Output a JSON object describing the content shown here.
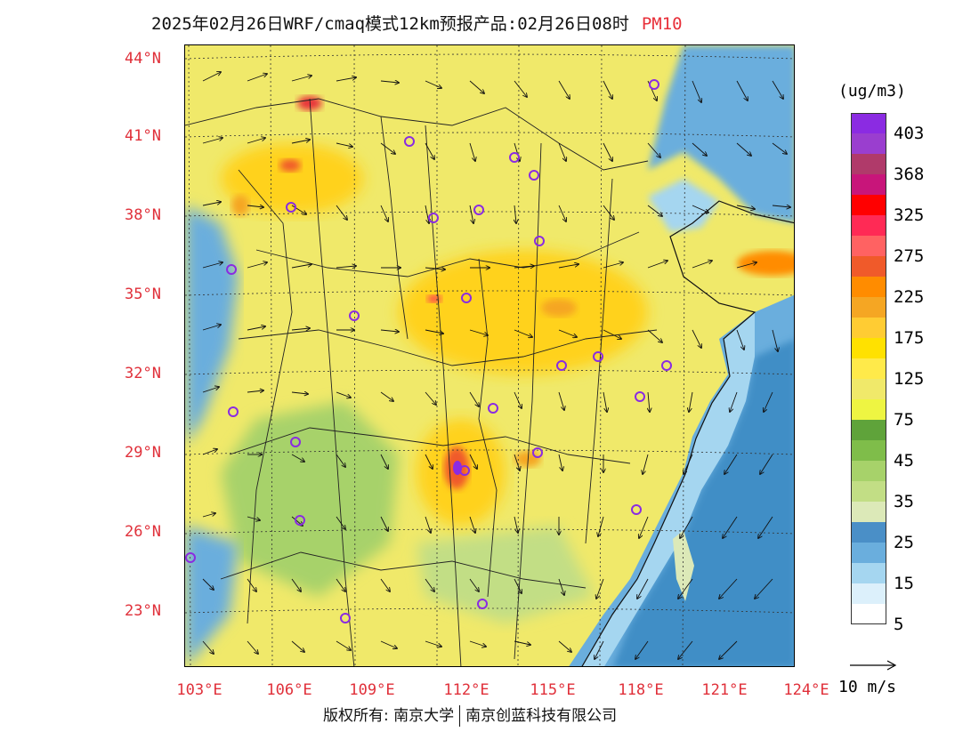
{
  "title": {
    "main": "2025年02月26日WRF/cmaq模式12km预报产品:02月26日08时",
    "species": "PM10"
  },
  "map": {
    "lat_labels": [
      "44°N",
      "41°N",
      "38°N",
      "35°N",
      "32°N",
      "29°N",
      "26°N",
      "23°N"
    ],
    "lon_labels": [
      "103°E",
      "106°E",
      "109°E",
      "112°E",
      "115°E",
      "118°E",
      "121°E",
      "124°E"
    ],
    "colors": {
      "land_base": "#f0e96a",
      "high": "#ffd21e",
      "sea_deep": "#3f8ec6",
      "sea": "#6aaedd",
      "sea_light": "#a5d6f0",
      "label": "#e0303a"
    }
  },
  "colorbar": {
    "unit": "(ug/m3)",
    "colors": [
      "#8b2be2",
      "#9a3ecf",
      "#b03a6a",
      "#c8157a",
      "#ff0000",
      "#ff2a55",
      "#ff6262",
      "#f05a2a",
      "#ff8c00",
      "#f5a623",
      "#ffcc33",
      "#ffe100",
      "#ffea4a",
      "#f0e96a",
      "#eef542",
      "#5fa33a",
      "#7fbd4a",
      "#a7d26a",
      "#c2de85",
      "#dce9b8",
      "#4a8fc7",
      "#6aaedd",
      "#a5d6f0",
      "#dcf0fb",
      "#ffffff"
    ],
    "labels": [
      "403",
      "368",
      "325",
      "275",
      "225",
      "175",
      "125",
      "75",
      "45",
      "35",
      "25",
      "15",
      "5"
    ]
  },
  "wind_reference": {
    "label": "10 m/s"
  },
  "copyright": {
    "prefix": "版权所有:",
    "org1": "南京大学",
    "org2": "南京创蓝科技有限公司"
  }
}
